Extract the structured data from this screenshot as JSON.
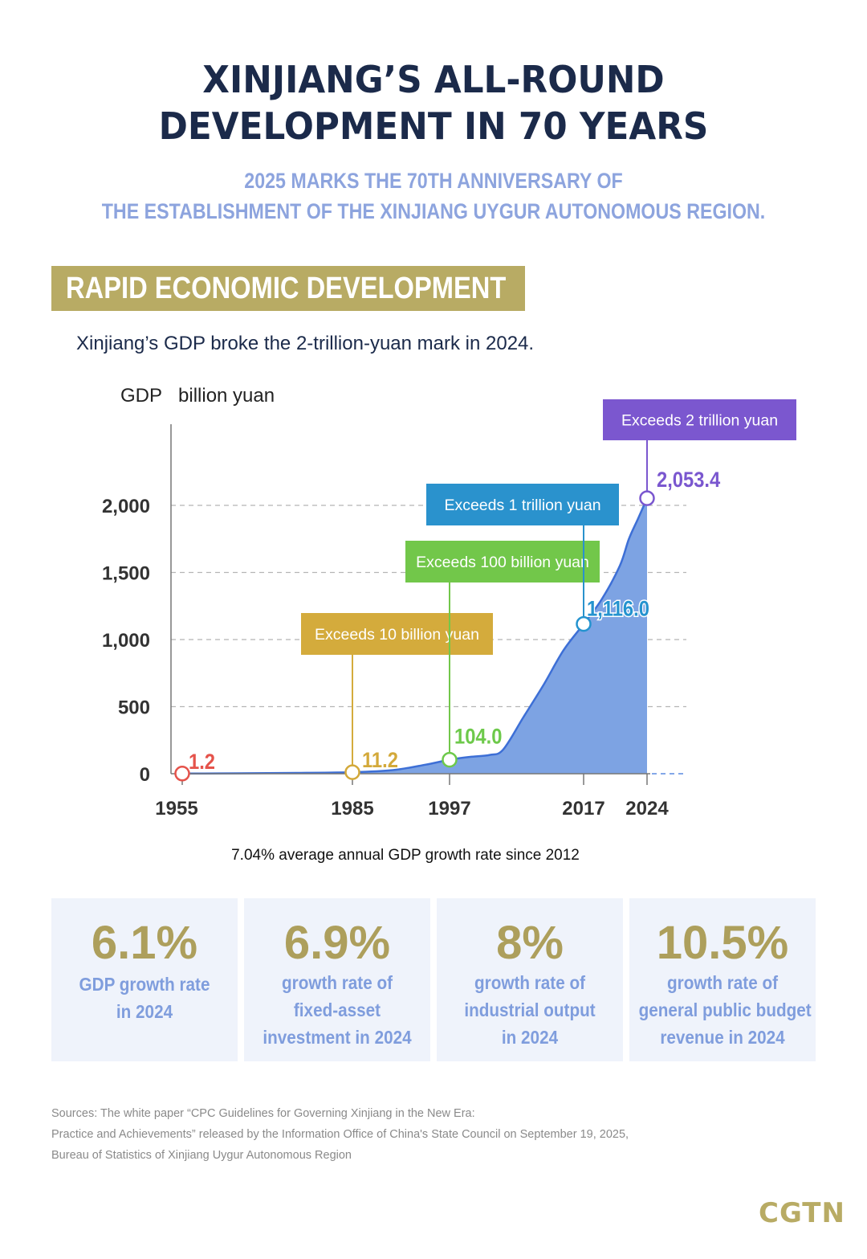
{
  "header": {
    "title_lines": [
      "XINJIANG’S ALL-ROUND",
      "DEVELOPMENT IN 70 YEARS"
    ],
    "subtitle_lines": [
      "2025 MARKS THE 70TH ANNIVERSARY OF",
      "THE ESTABLISHMENT OF THE XINJIANG UYGUR AUTONOMOUS REGION."
    ]
  },
  "section": {
    "title": "RAPID ECONOMIC DEVELOPMENT",
    "headline": "Xinjiang’s GDP broke the 2-trillion-yuan mark in 2024."
  },
  "colors": {
    "title": "#1b2a4a",
    "subtitle": "#8da4de",
    "banner": "#b8ab64",
    "area_fill": "#7da3e3",
    "area_line": "#3d6fd6",
    "stat_value": "#ad9f5c",
    "stat_desc": "#7f9ddd",
    "card_bg": "#eff3fb"
  },
  "chart_data": {
    "type": "area",
    "title": "",
    "ylabel": "GDP",
    "yunit": "billion yuan",
    "xlabel": "",
    "ylim": [
      0,
      2200
    ],
    "yticks": [
      0,
      500,
      1000,
      1500,
      2000
    ],
    "ytick_labels": [
      "0",
      "500",
      "1,000",
      "1,500",
      "2,000"
    ],
    "xticks": [
      1955,
      1985,
      1997,
      2017,
      2024
    ],
    "xtick_labels": [
      "1955",
      "1985",
      "1997",
      "2017",
      "2024"
    ],
    "grid": "horizontal dashed",
    "series": [
      {
        "name": "GDP",
        "x": [
          1955,
          1965,
          1975,
          1985,
          1990,
          1994,
          1997,
          2000,
          2003,
          2005,
          2008,
          2011,
          2014,
          2017,
          2019,
          2021,
          2022,
          2023,
          2024
        ],
        "values": [
          1.2,
          3,
          6,
          11.2,
          27,
          67,
          104,
          125,
          140,
          180,
          420,
          660,
          920,
          1116,
          1300,
          1550,
          1750,
          1900,
          2053.4
        ]
      }
    ],
    "highlighted_points": [
      {
        "x": 1955,
        "value": 1.2,
        "label": "1.2",
        "color": "#e5534b"
      },
      {
        "x": 1985,
        "value": 11.2,
        "label": "11.2",
        "color": "#d3a93a",
        "annotation": "Exceeds 10 billion yuan"
      },
      {
        "x": 1997,
        "value": 104.0,
        "label": "104.0",
        "color": "#6dc94a",
        "annotation": "Exceeds 100 billion yuan"
      },
      {
        "x": 2017,
        "value": 1116.0,
        "label": "1,116.0",
        "color": "#2493cf",
        "annotation": "Exceeds 1 trillion yuan"
      },
      {
        "x": 2024,
        "value": 2053.4,
        "label": "2,053.4",
        "color": "#7a57cf",
        "annotation": "Exceeds 2 trillion yuan"
      }
    ],
    "annotation_colors": {
      "10b": "#d4ab3c",
      "100b": "#72c74a",
      "1t": "#2a92cd",
      "2t": "#7b57cf"
    }
  },
  "growth_note": "7.04% average annual GDP growth rate since 2012",
  "stats": [
    {
      "value": "6.1%",
      "desc_lines": [
        "GDP growth rate",
        "in 2024"
      ]
    },
    {
      "value": "6.9%",
      "desc_lines": [
        "growth rate of",
        "fixed-asset",
        "investment in 2024"
      ]
    },
    {
      "value": "8%",
      "desc_lines": [
        "growth rate of",
        "industrial output",
        "in 2024"
      ]
    },
    {
      "value": "10.5%",
      "desc_lines": [
        "growth rate of",
        "general public budget",
        "revenue in 2024"
      ]
    }
  ],
  "sources_lines": [
    "Sources: The white paper “CPC Guidelines for Governing Xinjiang in the New Era:",
    "Practice and Achievements” released by the Information Office of China's State Council on September 19, 2025,",
    "Bureau of Statistics of Xinjiang Uygur Autonomous Region"
  ],
  "logo": "CGTN"
}
